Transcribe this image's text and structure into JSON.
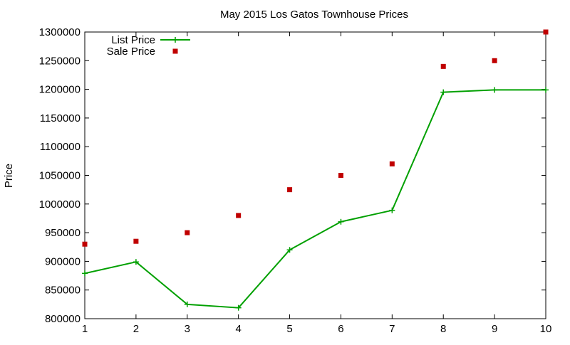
{
  "chart_data": {
    "type": "line",
    "title": "May 2015 Los Gatos Townhouse Prices",
    "xlabel": "",
    "ylabel": "Price",
    "x": [
      1,
      2,
      3,
      4,
      5,
      6,
      7,
      8,
      9,
      10
    ],
    "xlim": [
      1,
      10
    ],
    "ylim": [
      800000,
      1300000
    ],
    "xticks": [
      "1",
      "2",
      "3",
      "4",
      "5",
      "6",
      "7",
      "8",
      "9",
      "10"
    ],
    "yticks": [
      "800000",
      "850000",
      "900000",
      "950000",
      "1000000",
      "1050000",
      "1100000",
      "1150000",
      "1200000",
      "1250000",
      "1300000"
    ],
    "grid": false,
    "legend_position": "top-left",
    "series": [
      {
        "name": "List Price",
        "style": "linespoints",
        "marker": "plus",
        "color": "#00a000",
        "values": [
          879000,
          899000,
          825000,
          819000,
          920000,
          969000,
          989000,
          1195000,
          1199000,
          1199000
        ]
      },
      {
        "name": "Sale Price",
        "style": "points",
        "marker": "square",
        "color": "#c00000",
        "values": [
          930000,
          935000,
          950000,
          980000,
          1025000,
          1050000,
          1070000,
          1240000,
          1250000,
          1300000
        ]
      }
    ]
  }
}
